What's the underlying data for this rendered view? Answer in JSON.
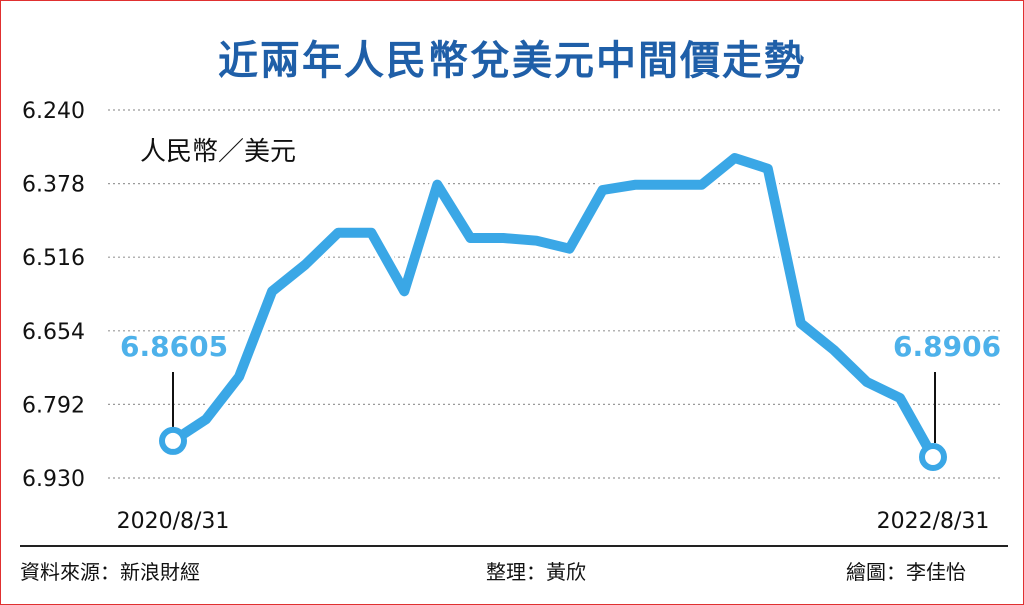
{
  "title": "近兩年人民幣兌美元中間價走勢",
  "colors": {
    "title": "#1f5fa8",
    "line": "#3aa7e6",
    "callout": "#4db1ea",
    "grid": "#9a9a9a"
  },
  "footer": {
    "source": "資料來源：新浪財經",
    "editor": "整理：黃欣",
    "artist": "繪圖：李佳怡"
  },
  "chart_data": {
    "type": "line",
    "unit_label": "人民幣／美元",
    "y_ticks": [
      "6.240",
      "6.378",
      "6.516",
      "6.654",
      "6.792",
      "6.930"
    ],
    "ylim": [
      6.24,
      6.93
    ],
    "y_inverted": true,
    "grid": "horizontal dotted",
    "x_tick_labels": [
      "2020/8/31",
      "2022/8/31"
    ],
    "series": [
      {
        "values": [
          6.8605,
          6.82,
          6.74,
          6.58,
          6.53,
          6.47,
          6.47,
          6.58,
          6.38,
          6.48,
          6.48,
          6.485,
          6.5,
          6.39,
          6.38,
          6.38,
          6.38,
          6.33,
          6.35,
          6.64,
          6.69,
          6.75,
          6.78,
          6.8906
        ]
      }
    ],
    "annotations": [
      {
        "label": "6.8605",
        "at": "start"
      },
      {
        "label": "6.8906",
        "at": "end"
      }
    ]
  }
}
